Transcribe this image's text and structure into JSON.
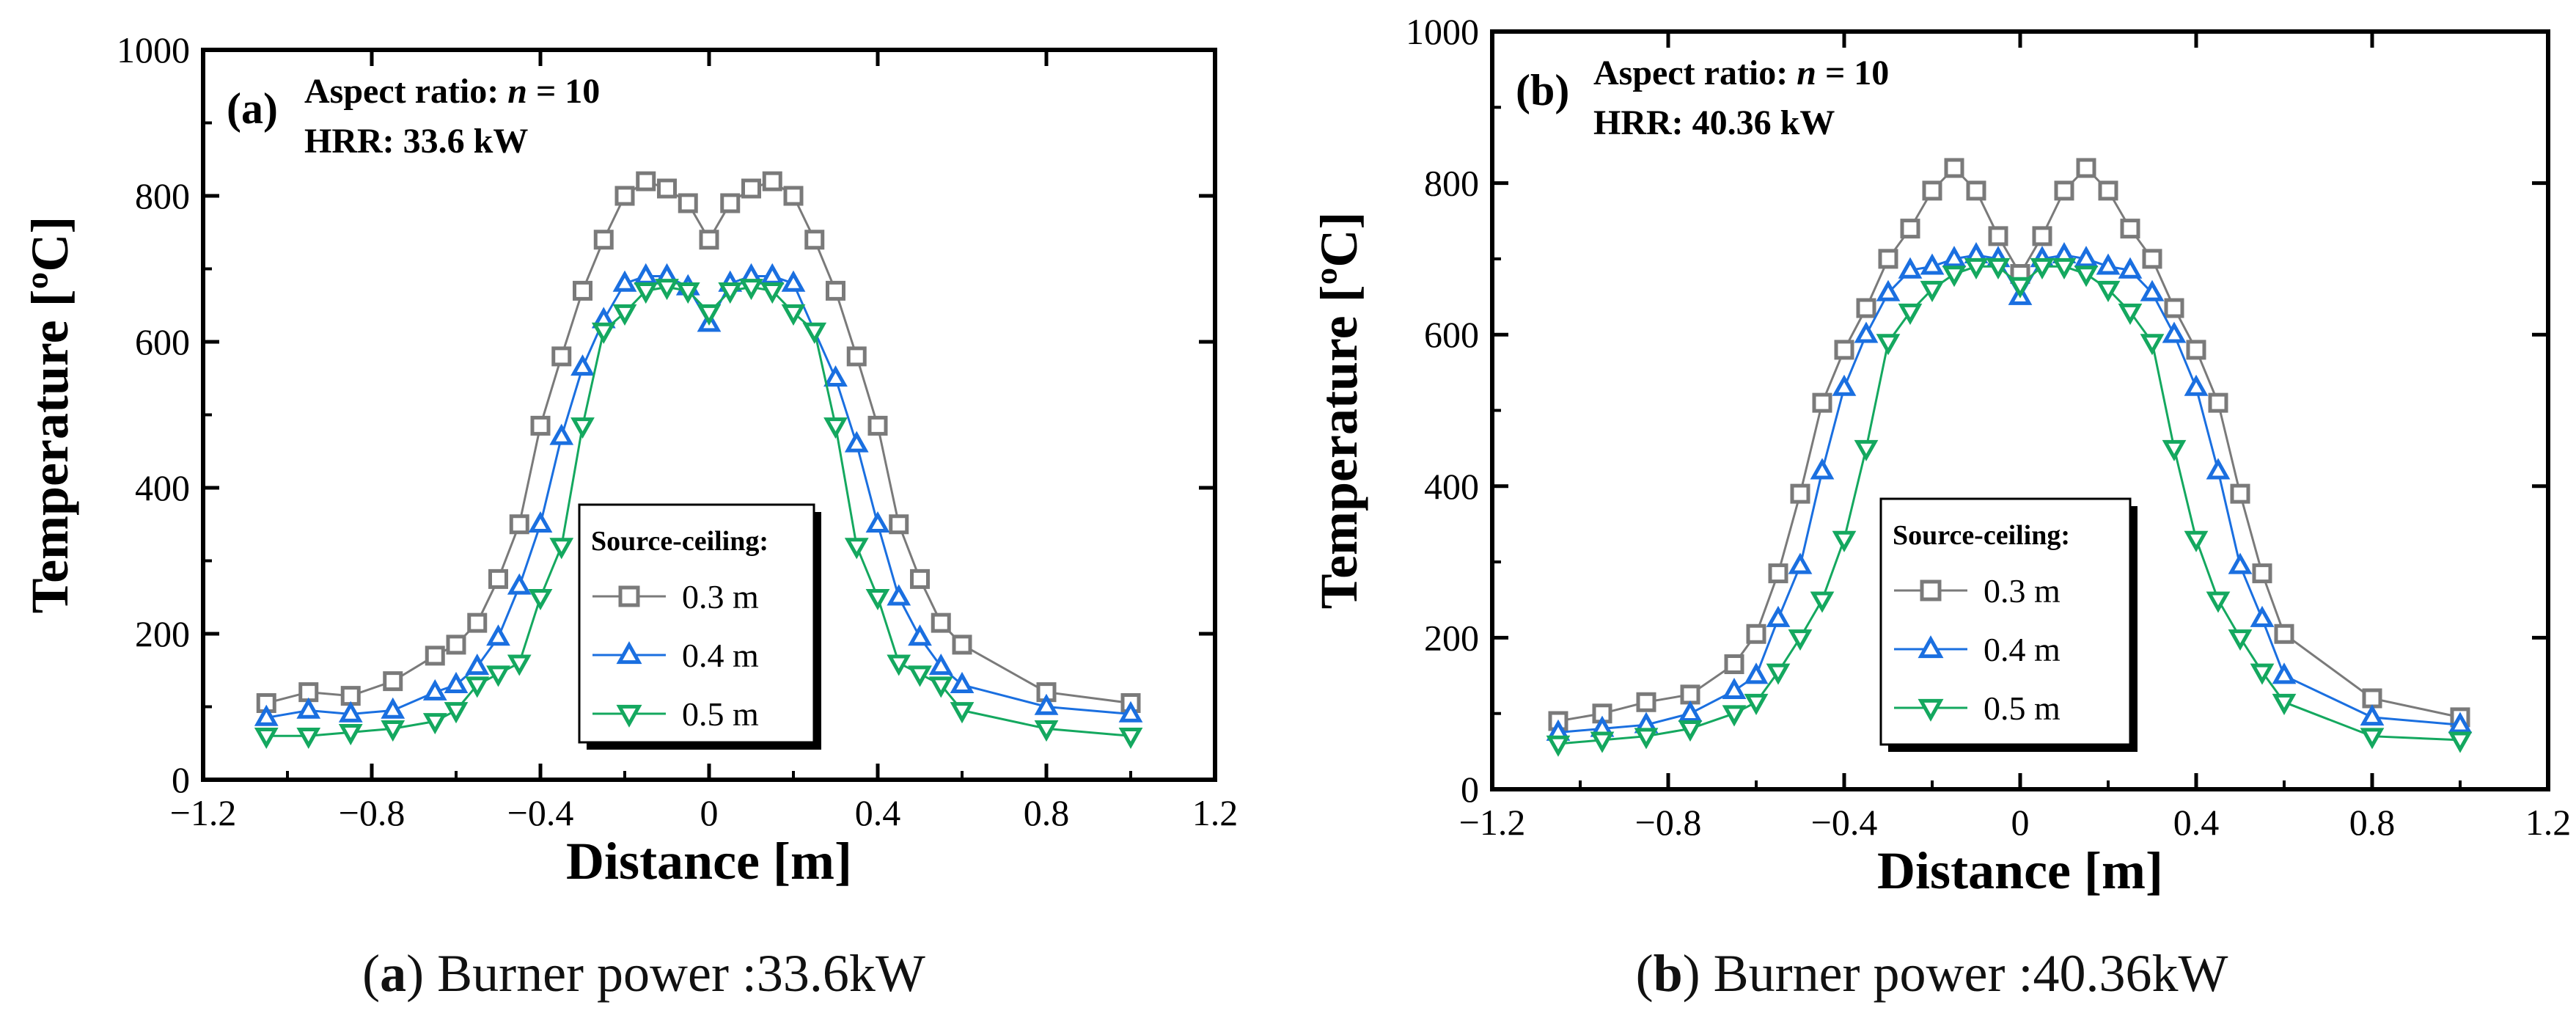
{
  "colors": {
    "s03": "#7a7a7a",
    "s04": "#1a6fe0",
    "s05": "#14a85f"
  },
  "captions": [
    {
      "letter": "a",
      "text": "Burner power :33.6kW"
    },
    {
      "letter": "b",
      "text": "Burner power :40.36kW"
    }
  ],
  "chart_data": [
    {
      "type": "line",
      "panel": "(a)",
      "annotation": {
        "line1_prefix": "Aspect ratio: ",
        "line1_var": "n",
        "line1_suffix": " = 10",
        "line2": "HRR: 33.6 kW"
      },
      "xlabel": "Distance [m]",
      "ylabel": "Temperature [ºC]",
      "xlim": [
        -1.2,
        1.2
      ],
      "ylim": [
        0,
        1000
      ],
      "xticks": [
        -1.2,
        -0.8,
        -0.4,
        0,
        0.4,
        0.8,
        1.2
      ],
      "xtick_labels": [
        "−1.2",
        "−0.8",
        "−0.4",
        "0",
        "0.4",
        "0.8",
        "1.2"
      ],
      "yticks": [
        0,
        200,
        400,
        600,
        800,
        1000
      ],
      "ytick_labels": [
        "0",
        "200",
        "400",
        "600",
        "800",
        "1000"
      ],
      "legend": {
        "title": "Source-ceiling:",
        "placement": "lower-center"
      },
      "series": [
        {
          "name": "0.3 m",
          "marker": "square",
          "color_key": "s03",
          "x": [
            -1.05,
            -0.95,
            -0.85,
            -0.75,
            -0.65,
            -0.6,
            -0.55,
            -0.5,
            -0.45,
            -0.4,
            -0.35,
            -0.3,
            -0.25,
            -0.2,
            -0.15,
            -0.1,
            -0.05,
            0,
            0.05,
            0.1,
            0.15,
            0.2,
            0.25,
            0.3,
            0.35,
            0.4,
            0.45,
            0.5,
            0.55,
            0.6,
            0.8,
            1.0
          ],
          "y": [
            105,
            120,
            115,
            135,
            170,
            185,
            215,
            275,
            350,
            485,
            580,
            670,
            740,
            800,
            820,
            810,
            790,
            740,
            790,
            810,
            820,
            800,
            740,
            670,
            580,
            485,
            350,
            275,
            215,
            185,
            120,
            105
          ]
        },
        {
          "name": "0.4 m",
          "marker": "triangle-up",
          "color_key": "s04",
          "x": [
            -1.05,
            -0.95,
            -0.85,
            -0.75,
            -0.65,
            -0.6,
            -0.55,
            -0.5,
            -0.45,
            -0.4,
            -0.35,
            -0.3,
            -0.25,
            -0.2,
            -0.15,
            -0.1,
            -0.05,
            0,
            0.05,
            0.1,
            0.15,
            0.2,
            0.3,
            0.35,
            0.4,
            0.45,
            0.5,
            0.55,
            0.6,
            0.8,
            1.0
          ],
          "y": [
            85,
            95,
            90,
            95,
            120,
            130,
            155,
            195,
            265,
            350,
            470,
            565,
            630,
            680,
            690,
            690,
            675,
            625,
            680,
            690,
            690,
            680,
            550,
            460,
            350,
            250,
            195,
            155,
            130,
            100,
            90
          ]
        },
        {
          "name": "0.5 m",
          "marker": "triangle-down",
          "color_key": "s05",
          "x": [
            -1.05,
            -0.95,
            -0.85,
            -0.75,
            -0.65,
            -0.6,
            -0.55,
            -0.5,
            -0.45,
            -0.4,
            -0.35,
            -0.3,
            -0.25,
            -0.2,
            -0.15,
            -0.1,
            -0.05,
            0,
            0.05,
            0.1,
            0.15,
            0.2,
            0.25,
            0.3,
            0.35,
            0.4,
            0.45,
            0.5,
            0.55,
            0.6,
            0.8,
            1.0
          ],
          "y": [
            60,
            60,
            65,
            70,
            80,
            95,
            130,
            145,
            160,
            250,
            320,
            485,
            615,
            640,
            670,
            675,
            670,
            640,
            670,
            675,
            670,
            640,
            615,
            485,
            320,
            250,
            160,
            145,
            130,
            95,
            70,
            60
          ]
        }
      ]
    },
    {
      "type": "line",
      "panel": "(b)",
      "annotation": {
        "line1_prefix": "Aspect ratio: ",
        "line1_var": "n",
        "line1_suffix": " = 10",
        "line2": "HRR: 40.36 kW"
      },
      "xlabel": "Distance [m]",
      "ylabel": "Temperature [ºC]",
      "xlim": [
        -1.2,
        1.2
      ],
      "ylim": [
        0,
        1000
      ],
      "xticks": [
        -1.2,
        -0.8,
        -0.4,
        0,
        0.4,
        0.8,
        1.2
      ],
      "xtick_labels": [
        "−1.2",
        "−0.8",
        "−0.4",
        "0",
        "0.4",
        "0.8",
        "1.2"
      ],
      "yticks": [
        0,
        200,
        400,
        600,
        800,
        1000
      ],
      "ytick_labels": [
        "0",
        "200",
        "400",
        "600",
        "800",
        "1000"
      ],
      "legend": {
        "title": "Source-ceiling:",
        "placement": "lower-center"
      },
      "series": [
        {
          "name": "0.3 m",
          "marker": "square",
          "color_key": "s03",
          "x": [
            -1.05,
            -0.95,
            -0.85,
            -0.75,
            -0.65,
            -0.6,
            -0.55,
            -0.5,
            -0.45,
            -0.4,
            -0.35,
            -0.3,
            -0.25,
            -0.2,
            -0.15,
            -0.1,
            -0.05,
            0,
            0.05,
            0.1,
            0.15,
            0.2,
            0.25,
            0.3,
            0.35,
            0.4,
            0.45,
            0.5,
            0.55,
            0.6,
            0.8,
            1.0
          ],
          "y": [
            90,
            100,
            115,
            125,
            165,
            205,
            285,
            390,
            510,
            580,
            635,
            700,
            740,
            790,
            820,
            790,
            730,
            680,
            730,
            790,
            820,
            790,
            740,
            700,
            635,
            580,
            510,
            390,
            285,
            205,
            120,
            95
          ]
        },
        {
          "name": "0.4 m",
          "marker": "triangle-up",
          "color_key": "s04",
          "x": [
            -1.05,
            -0.95,
            -0.85,
            -0.75,
            -0.65,
            -0.6,
            -0.55,
            -0.5,
            -0.45,
            -0.4,
            -0.35,
            -0.3,
            -0.25,
            -0.2,
            -0.15,
            -0.1,
            -0.05,
            0,
            0.05,
            0.1,
            0.15,
            0.2,
            0.25,
            0.3,
            0.35,
            0.4,
            0.45,
            0.5,
            0.55,
            0.6,
            0.8,
            1.0
          ],
          "y": [
            75,
            80,
            85,
            100,
            130,
            150,
            225,
            295,
            420,
            530,
            600,
            655,
            685,
            690,
            700,
            705,
            700,
            650,
            700,
            705,
            700,
            690,
            685,
            655,
            600,
            530,
            420,
            295,
            225,
            150,
            95,
            85
          ]
        },
        {
          "name": "0.5 m",
          "marker": "triangle-down",
          "color_key": "s05",
          "x": [
            -1.05,
            -0.95,
            -0.85,
            -0.75,
            -0.65,
            -0.6,
            -0.55,
            -0.5,
            -0.45,
            -0.4,
            -0.35,
            -0.3,
            -0.25,
            -0.2,
            -0.15,
            -0.1,
            -0.05,
            0,
            0.05,
            0.1,
            0.15,
            0.2,
            0.25,
            0.3,
            0.35,
            0.4,
            0.45,
            0.5,
            0.55,
            0.6,
            0.8,
            1.0
          ],
          "y": [
            60,
            65,
            70,
            80,
            100,
            115,
            155,
            200,
            250,
            330,
            450,
            590,
            630,
            660,
            680,
            690,
            690,
            665,
            690,
            690,
            680,
            660,
            630,
            590,
            450,
            330,
            250,
            200,
            155,
            115,
            70,
            65
          ]
        }
      ]
    }
  ]
}
